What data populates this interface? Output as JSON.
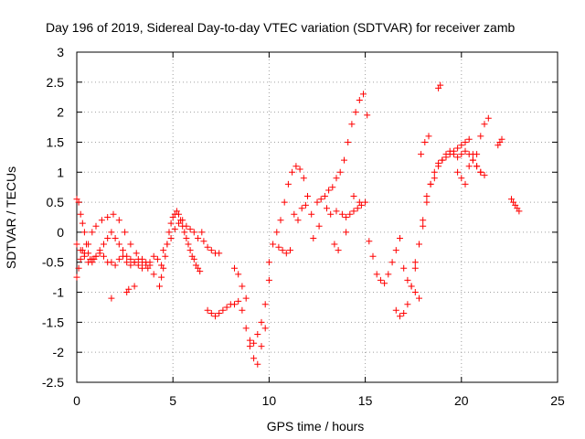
{
  "chart_data": {
    "type": "scatter",
    "title": "Day 196 of 2019, Sidereal Day-to-day VTEC variation (SDTVAR) for receiver zamb",
    "xlabel": "GPS time / hours",
    "ylabel": "SDTVAR / TECUs",
    "xlim": [
      0,
      25
    ],
    "ylim": [
      -2.5,
      3
    ],
    "x_ticks": [
      "0",
      "5",
      "10",
      "15",
      "20",
      "25"
    ],
    "y_ticks": [
      "3",
      "2.5",
      "2",
      "1.5",
      "1",
      "0.5",
      "0",
      "-0.5",
      "-1",
      "-1.5",
      "-2",
      "-2.5"
    ],
    "x_tick_values": [
      0,
      5,
      10,
      15,
      20,
      25
    ],
    "y_tick_values": [
      3,
      2.5,
      2,
      1.5,
      1,
      0.5,
      0,
      -0.5,
      -1,
      -1.5,
      -2,
      -2.5
    ],
    "grid": true,
    "marker": "plus",
    "color": "#ff0000",
    "series": [
      {
        "name": "SDTVAR",
        "x": [
          0.0,
          0.1,
          0.2,
          0.3,
          0.4,
          0.5,
          0.6,
          0.7,
          0.8,
          0.9,
          1.0,
          1.2,
          1.4,
          1.6,
          1.8,
          2.0,
          2.2,
          2.4,
          2.6,
          2.8,
          3.0,
          3.2,
          3.4,
          3.6,
          3.8,
          4.0,
          4.2,
          4.4,
          0.0,
          0.1,
          0.2,
          0.3,
          0.4,
          0.6,
          0.8,
          1.0,
          1.2,
          1.4,
          1.6,
          1.8,
          2.0,
          2.2,
          2.4,
          2.6,
          2.8,
          3.0,
          3.2,
          3.4,
          3.6,
          3.8,
          0.0,
          0.2,
          0.4,
          0.6,
          0.8,
          1.0,
          1.3,
          1.6,
          1.9,
          2.2,
          2.5,
          2.8,
          3.1,
          3.4,
          3.7,
          4.0,
          1.8,
          2.6,
          2.7,
          3.0,
          4.3,
          4.4,
          4.5,
          4.6,
          4.7,
          4.8,
          4.9,
          5.0,
          5.1,
          5.2,
          5.3,
          5.4,
          5.5,
          5.6,
          5.7,
          5.8,
          5.9,
          6.0,
          6.1,
          6.2,
          6.3,
          6.4,
          4.5,
          4.7,
          4.9,
          5.1,
          5.3,
          5.5,
          5.7,
          5.9,
          6.1,
          6.3,
          6.5,
          6.6,
          6.8,
          7.0,
          7.2,
          7.4,
          6.8,
          7.0,
          7.2,
          7.4,
          7.6,
          7.8,
          8.0,
          8.2,
          8.4,
          8.6,
          8.8,
          9.0,
          9.2,
          9.4,
          9.6,
          9.8,
          10.0,
          8.2,
          8.4,
          8.6,
          8.8,
          9.0,
          9.2,
          9.4,
          9.6,
          9.8,
          10.0,
          10.2,
          10.4,
          10.6,
          10.8,
          11.0,
          11.2,
          11.4,
          11.6,
          11.8,
          12.0,
          12.2,
          10.5,
          10.7,
          10.9,
          11.1,
          11.3,
          11.5,
          11.7,
          11.9,
          12.5,
          12.7,
          12.9,
          13.1,
          13.3,
          13.5,
          13.7,
          13.9,
          14.1,
          14.3,
          14.5,
          14.7,
          14.9,
          15.1,
          13.0,
          13.5,
          13.8,
          14.0,
          14.2,
          14.4,
          14.6,
          14.8,
          15.0,
          12.3,
          12.6,
          13.2,
          13.4,
          13.6,
          14.0,
          14.4,
          14.7,
          15.2,
          15.4,
          15.6,
          15.8,
          16.0,
          16.2,
          16.4,
          16.6,
          16.8,
          17.0,
          17.2,
          17.4,
          17.6,
          17.8,
          16.6,
          16.8,
          17.0,
          17.2,
          17.4,
          17.6,
          17.8,
          18.0,
          18.2,
          18.4,
          18.6,
          18.8,
          19.0,
          19.2,
          19.4,
          19.6,
          19.8,
          20.0,
          20.2,
          20.4,
          20.6,
          20.8,
          21.0,
          21.2,
          17.6,
          17.8,
          18.0,
          18.2,
          18.4,
          18.6,
          18.8,
          19.0,
          19.2,
          19.4,
          19.6,
          19.8,
          20.0,
          20.2,
          20.4,
          20.6,
          20.8,
          21.0,
          17.9,
          18.1,
          18.3,
          18.8,
          18.9,
          19.8,
          20.0,
          20.2,
          20.4,
          20.6,
          20.8,
          21.0,
          21.2,
          21.4,
          21.9,
          22.0,
          22.1,
          22.6,
          22.7,
          22.8,
          22.9,
          23.0
        ],
        "y": [
          0.55,
          0.5,
          0.3,
          0.15,
          0.0,
          -0.2,
          -0.35,
          -0.45,
          -0.5,
          -0.45,
          -0.4,
          -0.3,
          -0.2,
          -0.1,
          0.0,
          -0.1,
          -0.2,
          -0.3,
          -0.4,
          -0.45,
          -0.5,
          -0.55,
          -0.6,
          -0.55,
          -0.5,
          -0.4,
          -0.45,
          -0.55,
          -0.75,
          -0.6,
          -0.45,
          -0.3,
          -0.4,
          -0.5,
          -0.45,
          -0.4,
          -0.35,
          -0.4,
          -0.5,
          -0.5,
          -0.55,
          -0.45,
          -0.4,
          -0.5,
          -0.55,
          -0.5,
          -0.45,
          -0.45,
          -0.5,
          -0.55,
          -0.2,
          -0.3,
          -0.35,
          -0.2,
          0.0,
          0.1,
          0.2,
          0.25,
          0.3,
          0.2,
          0.0,
          -0.2,
          -0.35,
          -0.5,
          -0.6,
          -0.7,
          -1.1,
          -1.0,
          -0.95,
          -0.9,
          -0.9,
          -0.75,
          -0.6,
          -0.4,
          -0.2,
          0.0,
          0.15,
          0.25,
          0.3,
          0.35,
          0.3,
          0.2,
          0.1,
          0.0,
          -0.1,
          -0.2,
          -0.3,
          -0.4,
          -0.45,
          -0.55,
          -0.6,
          -0.65,
          -0.3,
          -0.2,
          -0.1,
          0.05,
          0.15,
          0.2,
          0.1,
          0.05,
          0.0,
          -0.1,
          0.0,
          -0.15,
          -0.25,
          -0.3,
          -0.35,
          -0.35,
          -1.3,
          -1.35,
          -1.4,
          -1.35,
          -1.3,
          -1.25,
          -1.2,
          -1.2,
          -1.15,
          -1.3,
          -1.6,
          -1.8,
          -1.85,
          -1.7,
          -1.5,
          -1.2,
          -0.8,
          -0.6,
          -0.7,
          -0.9,
          -1.1,
          -1.9,
          -2.1,
          -2.2,
          -1.9,
          -1.6,
          -0.5,
          -0.2,
          0.0,
          0.2,
          0.5,
          0.8,
          1.0,
          1.1,
          1.05,
          0.9,
          0.6,
          0.3,
          -0.25,
          -0.3,
          -0.35,
          -0.3,
          0.3,
          0.2,
          0.4,
          0.45,
          0.5,
          0.55,
          0.6,
          0.7,
          0.75,
          0.9,
          1.0,
          1.2,
          1.5,
          1.8,
          2.0,
          2.2,
          2.3,
          1.95,
          0.4,
          0.35,
          0.3,
          0.25,
          0.3,
          0.35,
          0.4,
          0.45,
          0.5,
          -0.1,
          0.1,
          0.3,
          -0.2,
          -0.3,
          0.0,
          0.6,
          0.5,
          -0.15,
          -0.4,
          -0.7,
          -0.8,
          -0.85,
          -0.7,
          -0.5,
          -0.3,
          -0.1,
          -0.6,
          -0.8,
          -0.9,
          -1.0,
          -1.1,
          -1.3,
          -1.4,
          -1.35,
          -1.2,
          -0.9,
          -0.6,
          -0.2,
          0.2,
          0.6,
          0.8,
          0.9,
          1.1,
          1.2,
          1.3,
          1.35,
          1.3,
          1.25,
          1.3,
          1.35,
          1.3,
          1.2,
          1.1,
          1.0,
          0.95,
          -0.5,
          -0.2,
          0.1,
          0.5,
          0.8,
          1.0,
          1.15,
          1.2,
          1.25,
          1.3,
          1.35,
          1.4,
          1.45,
          1.5,
          1.55,
          1.3,
          1.1,
          1.0,
          1.3,
          1.5,
          1.6,
          2.4,
          2.45,
          1.0,
          0.9,
          0.8,
          1.1,
          1.2,
          1.3,
          1.6,
          1.8,
          1.9,
          1.45,
          1.5,
          1.55,
          0.55,
          0.5,
          0.45,
          0.4,
          0.35
        ]
      }
    ]
  }
}
